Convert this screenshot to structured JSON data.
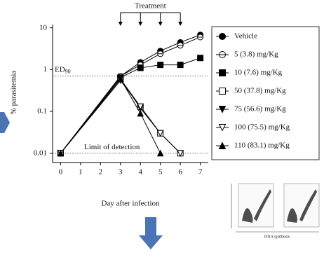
{
  "chart_data": {
    "type": "line",
    "y_label": "% parasitemia",
    "x_label": "Day after infection",
    "x": [
      0,
      3,
      4,
      5,
      6,
      7
    ],
    "xlim": [
      -0.4,
      7.4
    ],
    "xticks": [
      0,
      1,
      2,
      3,
      4,
      5,
      6,
      7
    ],
    "ylim": [
      0.006,
      12
    ],
    "yticks": [
      10,
      1,
      0.1,
      0.01
    ],
    "y_log": true,
    "legend": "right",
    "treatment": {
      "label": "Treatment",
      "days": [
        3,
        4,
        5,
        6
      ]
    },
    "reference_lines": [
      {
        "text": "ED",
        "subscript": "90",
        "value": 0.7
      },
      {
        "text": "Limit of detection",
        "value": 0.01
      }
    ],
    "series": [
      {
        "name": "Vehicle",
        "marker": "circle-filled",
        "values": [
          0.01,
          0.7,
          1.5,
          2.8,
          4.5,
          6.8
        ]
      },
      {
        "name": "5 (3.8) mg/Kg",
        "marker": "circle-open",
        "values": [
          0.01,
          0.7,
          1.3,
          2.4,
          3.8,
          6
        ]
      },
      {
        "name": "10 (7.6) mg/Kg",
        "marker": "square-filled",
        "values": [
          0.01,
          0.65,
          1.1,
          1.3,
          1.3,
          1.9
        ]
      },
      {
        "name": "50 (37.8) mg/Kg",
        "marker": "square-open",
        "values": [
          0.01,
          0.6,
          0.13,
          0.03,
          0.01,
          null
        ]
      },
      {
        "name": "75 (56.6) mg/Kg",
        "marker": "triangle-down-filled",
        "values": [
          0.01,
          0.6,
          0.12,
          0.03,
          null,
          null
        ]
      },
      {
        "name": "100 (75.5) mg/Kg",
        "marker": "triangle-down-open",
        "values": [
          0.01,
          0.55,
          0.13,
          0.03,
          0.01,
          null
        ]
      },
      {
        "name": "110 (83.1) mg/Kg",
        "marker": "triangle-up-filled",
        "values": [
          0.01,
          0.6,
          0.09,
          0.01,
          null,
          null
        ]
      }
    ],
    "inset": {
      "x_label": "DNA synthesis"
    }
  }
}
